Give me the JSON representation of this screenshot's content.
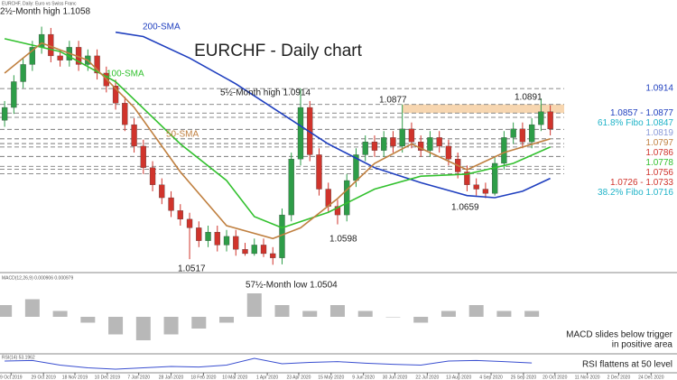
{
  "chart_data": {
    "type": "candlestick",
    "header": "EURCHF, Daily: Euro vs Swiss Franc",
    "title": "EURCHF - Daily chart",
    "annotations": [
      "2½-Month high 1.1058",
      "200-SMA",
      "100-SMA",
      "50-SMA",
      "5½-Month high 1.0914",
      "1.0877",
      "1.0891",
      "1.0517",
      "57½-Month low 1.0504",
      "1.0598",
      "1.0659"
    ],
    "xlim": [
      -0.5,
      72.7
    ],
    "xticks": [
      {
        "value": 0.7,
        "label": "9 Oct 2019"
      },
      {
        "value": 4.2,
        "label": "29 Oct 2019"
      },
      {
        "value": 7.6,
        "label": "18 Nov 2019"
      },
      {
        "value": 11.1,
        "label": "10 Dec 2019"
      },
      {
        "value": 14.5,
        "label": "7 Jan 2020"
      },
      {
        "value": 18,
        "label": "28 Jan 2020"
      },
      {
        "value": 21.5,
        "label": "18 Feb 2020"
      },
      {
        "value": 24.9,
        "label": "10 Mar 2020"
      },
      {
        "value": 28.4,
        "label": "1 Apr 2020"
      },
      {
        "value": 31.8,
        "label": "23 Apr 2020"
      },
      {
        "value": 35.3,
        "label": "15 May 2020"
      },
      {
        "value": 38.8,
        "label": "9 Jun 2020"
      },
      {
        "value": 42.2,
        "label": "30 Jun 2020"
      },
      {
        "value": 45.7,
        "label": "22 Jul 2020"
      },
      {
        "value": 49.1,
        "label": "13 Aug 2020"
      },
      {
        "value": 52.6,
        "label": "4 Sep 2020"
      },
      {
        "value": 56.1,
        "label": "25 Sep 2020"
      },
      {
        "value": 59.5,
        "label": "20 Oct 2020"
      },
      {
        "value": 63,
        "label": "11 Nov 2020"
      },
      {
        "value": 66.4,
        "label": "2 Dec 2020"
      },
      {
        "value": 69.9,
        "label": "24 Dec 2020"
      }
    ],
    "ylim": [
      1.049,
      1.112
    ],
    "candles": {
      "up_color": "#2e9d48",
      "down_color": "#d0342c",
      "open": [
        1.084,
        1.087,
        1.093,
        1.097,
        1.101,
        1.104,
        1.099,
        1.098,
        1.101,
        1.097,
        1.099,
        1.095,
        1.092,
        1.088,
        1.083,
        1.078,
        1.073,
        1.069,
        1.066,
        1.063,
        1.061,
        1.059,
        1.056,
        1.058,
        1.055,
        1.057,
        1.054,
        1.053,
        1.055,
        1.053,
        1.052,
        1.062,
        1.075,
        1.087,
        1.076,
        1.068,
        1.064,
        1.062,
        1.07,
        1.076,
        1.079,
        1.077,
        1.08,
        1.078,
        1.082,
        1.079,
        1.077,
        1.08,
        1.078,
        1.075,
        1.072,
        1.069,
        1.068,
        1.067,
        1.074,
        1.08,
        1.082,
        1.079,
        1.083,
        1.086
      ],
      "high": [
        1.0885,
        1.0945,
        1.0985,
        1.1025,
        1.1058,
        1.1055,
        1.1005,
        1.1025,
        1.1025,
        1.1005,
        1.1005,
        1.0965,
        1.0935,
        1.0895,
        1.0845,
        1.0795,
        1.0745,
        1.0705,
        1.0675,
        1.0645,
        1.0625,
        1.0605,
        1.0595,
        1.0595,
        1.0585,
        1.0585,
        1.0555,
        1.0565,
        1.0565,
        1.0545,
        1.0635,
        1.0765,
        1.0914,
        1.0885,
        1.0775,
        1.0695,
        1.0655,
        1.0715,
        1.0775,
        1.0805,
        1.0805,
        1.0815,
        1.0815,
        1.0877,
        1.0835,
        1.0805,
        1.0815,
        1.0815,
        1.0795,
        1.0765,
        1.0735,
        1.0705,
        1.0695,
        1.0755,
        1.0815,
        1.0835,
        1.0835,
        1.0845,
        1.0891,
        1.0875
      ],
      "low": [
        1.0825,
        1.0855,
        1.0915,
        1.0955,
        1.0995,
        1.0975,
        1.0965,
        1.0965,
        1.0955,
        1.0955,
        1.0935,
        1.0905,
        1.0865,
        1.0815,
        1.0765,
        1.0715,
        1.0675,
        1.0645,
        1.0615,
        1.0595,
        1.0517,
        1.0545,
        1.0545,
        1.0535,
        1.0535,
        1.0525,
        1.0525,
        1.0525,
        1.0522,
        1.0504,
        1.0505,
        1.0605,
        1.0735,
        1.0745,
        1.0665,
        1.0625,
        1.0598,
        1.0605,
        1.0685,
        1.0745,
        1.0755,
        1.0755,
        1.0765,
        1.0765,
        1.0775,
        1.0755,
        1.0755,
        1.0765,
        1.0735,
        1.0705,
        1.0675,
        1.0665,
        1.0659,
        1.0665,
        1.0725,
        1.0785,
        1.0775,
        1.0775,
        1.0815,
        1.0805
      ],
      "close": [
        1.087,
        1.093,
        1.097,
        1.101,
        1.104,
        1.099,
        1.098,
        1.101,
        1.097,
        1.099,
        1.095,
        1.092,
        1.088,
        1.083,
        1.078,
        1.073,
        1.069,
        1.066,
        1.063,
        1.061,
        1.059,
        1.056,
        1.058,
        1.055,
        1.057,
        1.054,
        1.053,
        1.055,
        1.053,
        1.052,
        1.062,
        1.075,
        1.087,
        1.076,
        1.068,
        1.064,
        1.062,
        1.07,
        1.076,
        1.079,
        1.077,
        1.08,
        1.078,
        1.082,
        1.079,
        1.077,
        1.08,
        1.078,
        1.075,
        1.072,
        1.069,
        1.068,
        1.067,
        1.074,
        1.08,
        1.082,
        1.079,
        1.083,
        1.086,
        1.082
      ]
    },
    "series": [
      {
        "name": "200-SMA",
        "color": "#1f3fbf",
        "x": [
          12,
          15,
          20,
          25,
          30,
          35,
          40,
          45,
          50,
          53,
          56,
          59
        ],
        "values": [
          1.1045,
          1.1035,
          1.0985,
          1.0925,
          1.0855,
          1.0785,
          1.073,
          1.0695,
          1.0665,
          1.066,
          1.0675,
          1.0705
        ]
      },
      {
        "name": "100-SMA",
        "color": "#33c12f",
        "x": [
          0,
          6,
          12,
          19,
          24,
          27,
          30,
          35,
          40,
          45,
          50,
          55,
          59
        ],
        "values": [
          1.103,
          1.1,
          1.093,
          1.0785,
          1.07,
          1.0616,
          1.059,
          1.0626,
          1.068,
          1.071,
          1.0715,
          1.074,
          1.0778
        ]
      },
      {
        "name": "50-SMA",
        "color": "#c08040",
        "x": [
          0,
          4,
          9,
          14,
          19,
          24,
          29,
          32,
          36,
          40,
          44,
          50,
          54,
          59
        ],
        "values": [
          1.095,
          1.102,
          1.098,
          1.087,
          1.072,
          1.0595,
          1.0565,
          1.059,
          1.0658,
          1.074,
          1.0785,
          1.0725,
          1.0765,
          1.0797
        ]
      }
    ],
    "zone": {
      "values": [
        1.0857,
        1.0877
      ],
      "color": "#f4c896"
    },
    "levels": [
      {
        "value": 1.0914,
        "label": "1.0914",
        "color": "#1f3fbf"
      },
      {
        "value": [
          1.0857,
          1.0877
        ],
        "label": "1.0857 - 1.0877",
        "color": "#1f3fbf"
      },
      {
        "value": 1.0847,
        "label": "61.8% Fibo 1.0847",
        "color": "#1fb3c8"
      },
      {
        "value": 1.0819,
        "label": "1.0819",
        "color": "#8a9ad8"
      },
      {
        "value": 1.0797,
        "label": "1.0797",
        "color": "#c08040"
      },
      {
        "value": 1.0786,
        "label": "1.0786",
        "color": "#d0342c"
      },
      {
        "value": 1.0778,
        "label": "1.0778",
        "color": "#33c12f"
      },
      {
        "value": 1.0756,
        "label": "1.0756",
        "color": "#d0342c"
      },
      {
        "value": [
          1.0726,
          1.0733
        ],
        "label": "1.0726 - 1.0733",
        "color": "#d0342c"
      },
      {
        "value": 1.0716,
        "label": "38.2% Fibo 1.0716",
        "color": "#1fb3c8"
      }
    ],
    "macd": {
      "header": "MACD(12,26,9) 0.000906 0.000979",
      "note": [
        "MACD slides below trigger",
        "in positive area"
      ],
      "x": [
        0,
        3,
        6,
        9,
        12,
        15,
        18,
        21,
        24,
        27,
        30,
        33,
        36,
        39,
        42,
        45,
        48,
        51,
        54,
        57
      ],
      "values": [
        0.002,
        0.003,
        0.001,
        -0.001,
        -0.003,
        -0.004,
        -0.003,
        -0.002,
        -0.001,
        0.004,
        0.002,
        0.001,
        0.002,
        0.001,
        0,
        -0.001,
        0.001,
        0.002,
        0.001,
        0.001
      ],
      "ylim": [
        -0.006,
        0.006
      ],
      "color": "#9a9a9a"
    },
    "rsi": {
      "header": "RSI(14) 53.1962",
      "note": "RSI flattens at 50 level",
      "x": [
        0,
        3,
        6,
        9,
        12,
        15,
        18,
        21,
        24,
        27,
        30,
        33,
        36,
        39,
        42,
        45,
        48,
        51,
        54,
        57
      ],
      "values": [
        60,
        62,
        45,
        35,
        30,
        35,
        40,
        38,
        45,
        70,
        50,
        55,
        58,
        52,
        48,
        45,
        60,
        62,
        58,
        53
      ],
      "ylim": [
        20,
        80
      ],
      "color": "#3a4fd0"
    }
  }
}
